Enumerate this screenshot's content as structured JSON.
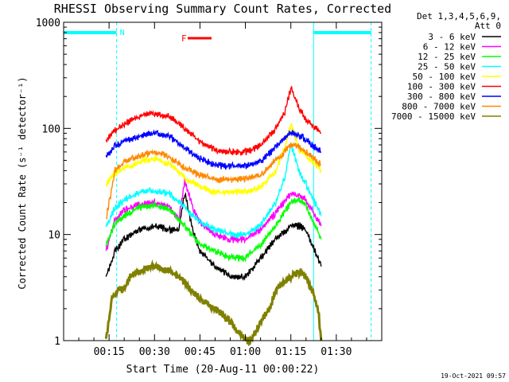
{
  "title": "RHESSI Observing Summary Count Rates, Corrected",
  "footer_timestamp": "19-Oct-2021 09:57",
  "header_lines": [
    "Det 1,3,4,5,6,9,",
    "Att 0"
  ],
  "colors": {
    "axes": "#000000",
    "night_shading": "#00ffff",
    "flare_marker": "#ff0000",
    "saa_marker": "#00ffff"
  },
  "markers": {
    "night_label": "N",
    "flare_label": "F"
  },
  "chart_data": {
    "type": "line",
    "title": "RHESSI Observing Summary Count Rates, Corrected",
    "xlabel": "Start Time (20-Aug-11 00:00:22)",
    "ylabel": "Corrected Count Rate (s⁻¹ detector⁻¹)",
    "y_scale": "log",
    "xlim_minutes": [
      0,
      105
    ],
    "ylim": [
      1,
      1000
    ],
    "x_tick_labels": [
      "00:15",
      "00:30",
      "00:45",
      "01:00",
      "01:15",
      "01:30"
    ],
    "x_tick_minutes": [
      15,
      30,
      45,
      60,
      75,
      90
    ],
    "y_tick_labels": [
      "1",
      "10",
      "100",
      "1000"
    ],
    "y_tick_values": [
      1,
      10,
      100,
      1000
    ],
    "night_intervals_minutes": [
      [
        0,
        17.5
      ],
      [
        82.5,
        101.5
      ]
    ],
    "series": [
      {
        "name": "3 - 6 keV",
        "color": "#000000",
        "x": [
          14,
          17,
          20,
          25,
          30,
          35,
          38,
          40,
          43,
          45,
          50,
          55,
          60,
          65,
          70,
          75,
          78,
          80,
          85
        ],
        "y": [
          4,
          7,
          9,
          11,
          12,
          11,
          11,
          25,
          10,
          7,
          5,
          4,
          4,
          6,
          9,
          12,
          12,
          11,
          5
        ]
      },
      {
        "name": "6 - 12 keV",
        "color": "#ff00ff",
        "x": [
          14,
          17,
          20,
          25,
          30,
          35,
          38,
          40,
          43,
          45,
          50,
          55,
          60,
          65,
          70,
          75,
          78,
          80,
          85
        ],
        "y": [
          7,
          14,
          17,
          19,
          20,
          18,
          14,
          32,
          17,
          13,
          10,
          9,
          9,
          11,
          16,
          24,
          23,
          21,
          12
        ]
      },
      {
        "name": "12 - 25 keV",
        "color": "#00ff00",
        "x": [
          14,
          17,
          20,
          25,
          30,
          35,
          40,
          45,
          50,
          55,
          60,
          65,
          70,
          75,
          78,
          80,
          85
        ],
        "y": [
          8,
          13,
          15,
          18,
          19,
          17,
          12,
          8,
          7,
          6,
          6,
          8,
          12,
          20,
          21,
          19,
          9
        ]
      },
      {
        "name": "25 - 50 keV",
        "color": "#00ffff",
        "x": [
          14,
          17,
          20,
          25,
          30,
          35,
          40,
          45,
          50,
          55,
          60,
          65,
          70,
          73,
          75,
          78,
          80,
          85
        ],
        "y": [
          12,
          18,
          21,
          25,
          26,
          24,
          18,
          13,
          11,
          10,
          10,
          12,
          20,
          35,
          70,
          38,
          30,
          15
        ]
      },
      {
        "name": "50 - 100 keV",
        "color": "#ffff00",
        "x": [
          14,
          17,
          20,
          25,
          30,
          35,
          40,
          45,
          50,
          55,
          60,
          65,
          70,
          73,
          75,
          78,
          80,
          85
        ],
        "y": [
          30,
          38,
          42,
          48,
          52,
          46,
          34,
          28,
          25,
          25,
          25,
          28,
          40,
          65,
          110,
          62,
          55,
          40
        ]
      },
      {
        "name": "100 - 300 keV",
        "color": "#ff0000",
        "x": [
          14,
          17,
          20,
          25,
          30,
          35,
          40,
          45,
          50,
          55,
          60,
          65,
          70,
          73,
          75,
          78,
          80,
          85
        ],
        "y": [
          78,
          95,
          110,
          130,
          140,
          128,
          100,
          75,
          62,
          60,
          60,
          68,
          100,
          140,
          240,
          150,
          120,
          90
        ]
      },
      {
        "name": "300 - 800 keV",
        "color": "#0000ff",
        "x": [
          14,
          17,
          20,
          25,
          30,
          35,
          40,
          45,
          50,
          55,
          60,
          65,
          70,
          73,
          75,
          78,
          80,
          85
        ],
        "y": [
          55,
          68,
          76,
          85,
          90,
          84,
          65,
          52,
          45,
          44,
          44,
          48,
          66,
          80,
          95,
          85,
          78,
          60
        ]
      },
      {
        "name": "800 - 7000 keV",
        "color": "#ff8800",
        "x": [
          14,
          17,
          20,
          25,
          30,
          35,
          40,
          45,
          50,
          55,
          60,
          65,
          70,
          73,
          75,
          78,
          80,
          85
        ],
        "y": [
          14,
          40,
          48,
          55,
          60,
          54,
          42,
          36,
          33,
          33,
          33,
          36,
          50,
          60,
          72,
          66,
          60,
          45
        ]
      },
      {
        "name": "7000 - 15000 keV",
        "color": "#808000",
        "x": [
          14,
          16,
          18,
          20,
          22,
          25,
          30,
          35,
          38,
          42,
          45,
          50,
          55,
          60,
          62,
          65,
          68,
          70,
          75,
          78,
          80,
          82,
          84,
          85
        ],
        "y": [
          1,
          2.5,
          3,
          3,
          4,
          4.5,
          5,
          4.5,
          4,
          3,
          2.5,
          2,
          1.5,
          1,
          1,
          1.5,
          2,
          3,
          4,
          4.5,
          4,
          3,
          2,
          1
        ]
      }
    ]
  }
}
